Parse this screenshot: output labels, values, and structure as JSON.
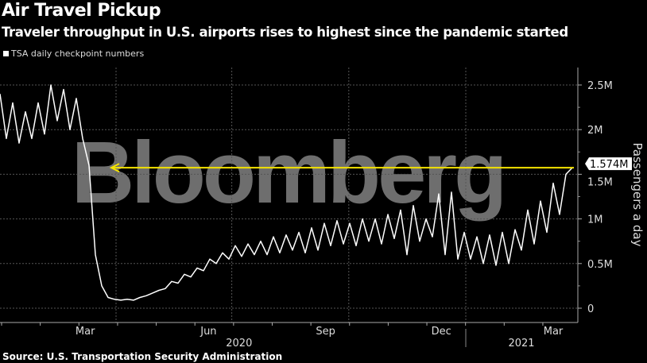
{
  "header": {
    "title": "Air Travel Pickup",
    "subtitle": "Traveler throughput in U.S. airports rises to highest since the pandemic started"
  },
  "footer": {
    "source": "Source: U.S. Transportation Security Administration"
  },
  "watermark": "Bloomberg",
  "colors": {
    "series": "#ffffff",
    "annotation": "#f5e400",
    "grid": "#555555",
    "watermark": "#6e6e6e"
  },
  "chart_data": {
    "type": "line",
    "title": "Air Travel Pickup",
    "legend": [
      "TSA daily checkpoint numbers"
    ],
    "legend_placement": "top-left",
    "ylabel": "Passengers a day",
    "ylim": [
      0,
      2.7
    ],
    "y_unit": "M",
    "yticks": [
      {
        "v": 0,
        "label": "0"
      },
      {
        "v": 0.5,
        "label": "0.5M"
      },
      {
        "v": 1,
        "label": "1M"
      },
      {
        "v": 1.5,
        "label": "1.5M"
      },
      {
        "v": 2,
        "label": "2M"
      },
      {
        "v": 2.5,
        "label": "2.5M"
      }
    ],
    "x_start": "2020-01-01",
    "x_step_days": 5,
    "xticks": [
      {
        "label": "Mar",
        "day": 67
      },
      {
        "label": "Jun",
        "day": 164
      },
      {
        "label": "Sep",
        "day": 256
      },
      {
        "label": "Dec",
        "day": 347
      },
      {
        "label": "Mar",
        "day": 435
      }
    ],
    "xgrid_days": [
      90,
      181,
      273,
      365
    ],
    "years": [
      {
        "label": "2020",
        "day": 188
      },
      {
        "label": "2021",
        "day": 410
      }
    ],
    "year_divider_day": 365,
    "grid": true,
    "series": [
      {
        "name": "TSA daily checkpoint numbers",
        "values": [
          2.4,
          1.9,
          2.3,
          1.85,
          2.2,
          1.9,
          2.3,
          1.95,
          2.5,
          2.1,
          2.45,
          2.0,
          2.35,
          1.9,
          1.6,
          0.6,
          0.25,
          0.12,
          0.1,
          0.09,
          0.1,
          0.09,
          0.12,
          0.14,
          0.17,
          0.2,
          0.22,
          0.3,
          0.28,
          0.38,
          0.35,
          0.45,
          0.42,
          0.55,
          0.5,
          0.62,
          0.55,
          0.7,
          0.58,
          0.72,
          0.6,
          0.75,
          0.6,
          0.8,
          0.62,
          0.82,
          0.65,
          0.85,
          0.62,
          0.9,
          0.65,
          0.95,
          0.7,
          0.98,
          0.72,
          0.95,
          0.7,
          1.0,
          0.75,
          1.0,
          0.72,
          1.05,
          0.78,
          1.1,
          0.6,
          1.15,
          0.75,
          1.0,
          0.8,
          1.28,
          0.6,
          1.3,
          0.55,
          0.85,
          0.55,
          0.8,
          0.5,
          0.82,
          0.48,
          0.85,
          0.5,
          0.88,
          0.65,
          1.1,
          0.72,
          1.2,
          0.85,
          1.4,
          1.05,
          1.5,
          1.574
        ]
      }
    ],
    "annotation": {
      "value": 1.574,
      "label": "1.574M"
    }
  }
}
